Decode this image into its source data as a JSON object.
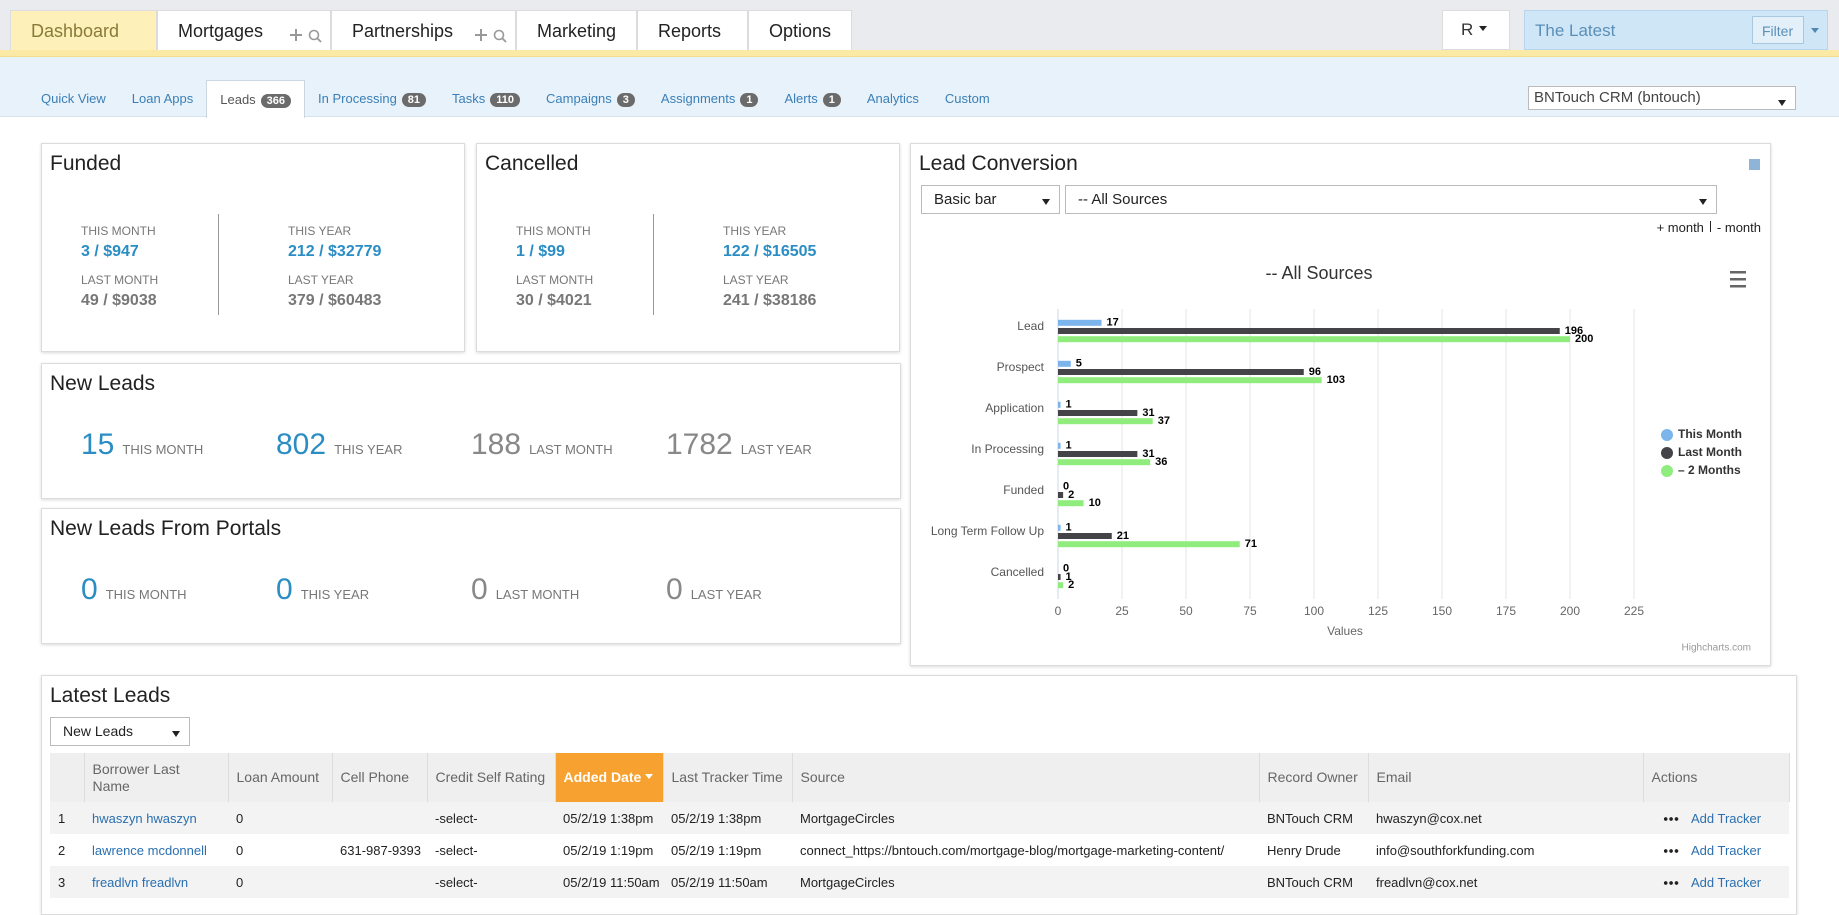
{
  "nav": {
    "tabs": [
      "Dashboard",
      "Mortgages",
      "Partnerships",
      "Marketing",
      "Reports",
      "Options"
    ],
    "user": "R",
    "search": "The Latest",
    "filter": "Filter"
  },
  "subnav": {
    "tabs": [
      {
        "label": "Quick View"
      },
      {
        "label": "Loan Apps"
      },
      {
        "label": "Leads",
        "count": 366
      },
      {
        "label": "In Processing",
        "count": 81
      },
      {
        "label": "Tasks",
        "count": 110
      },
      {
        "label": "Campaigns",
        "count": 3
      },
      {
        "label": "Assignments",
        "count": 1
      },
      {
        "label": "Alerts",
        "count": 1
      },
      {
        "label": "Analytics"
      },
      {
        "label": "Custom"
      }
    ],
    "crm": "BNTouch CRM (bntouch)"
  },
  "funded": {
    "title": "Funded",
    "stats": [
      {
        "label": "THIS MONTH",
        "value": "3 / $947"
      },
      {
        "label": "THIS YEAR",
        "value": "212 / $32779"
      },
      {
        "label": "LAST MONTH",
        "value": "49 / $9038"
      },
      {
        "label": "LAST YEAR",
        "value": "379 / $60483"
      }
    ]
  },
  "cancelled": {
    "title": "Cancelled",
    "stats": [
      {
        "label": "THIS MONTH",
        "value": "1 / $99"
      },
      {
        "label": "THIS YEAR",
        "value": "122 / $16505"
      },
      {
        "label": "LAST MONTH",
        "value": "30 / $4021"
      },
      {
        "label": "LAST YEAR",
        "value": "241 / $38186"
      }
    ]
  },
  "new_leads": {
    "title": "New Leads",
    "stats": [
      {
        "value": 15,
        "label": "THIS MONTH"
      },
      {
        "value": 802,
        "label": "THIS YEAR"
      },
      {
        "value": 188,
        "label": "LAST MONTH"
      },
      {
        "value": 1782,
        "label": "LAST YEAR"
      }
    ]
  },
  "portals": {
    "title": "New Leads From Portals",
    "stats": [
      {
        "value": 0,
        "label": "THIS MONTH"
      },
      {
        "value": 0,
        "label": "THIS YEAR"
      },
      {
        "value": 0,
        "label": "LAST MONTH"
      },
      {
        "value": 0,
        "label": "LAST YEAR"
      }
    ]
  },
  "lead_conversion": {
    "title": "Lead Conversion",
    "chart_select": "Basic bar",
    "source_select": "-- All Sources",
    "plus": "+ month",
    "minus": "- month",
    "credit": "Highcharts.com"
  },
  "chart_data": {
    "type": "bar",
    "orientation": "horizontal",
    "title": "-- All Sources",
    "x_label": "Values",
    "categories": [
      "Lead",
      "Prospect",
      "Application",
      "In Processing",
      "Funded",
      "Long Term Follow Up",
      "Cancelled"
    ],
    "series": [
      {
        "name": "This Month",
        "color": "#7cb5ec",
        "values": [
          17,
          5,
          1,
          1,
          0,
          1,
          0
        ]
      },
      {
        "name": "Last Month",
        "color": "#434348",
        "values": [
          196,
          96,
          31,
          31,
          2,
          21,
          1
        ]
      },
      {
        "name": "– 2 Months",
        "color": "#90ed7d",
        "values": [
          200,
          103,
          37,
          36,
          10,
          71,
          2
        ]
      }
    ],
    "xlim": [
      0,
      225
    ],
    "xticks": [
      0,
      25,
      50,
      75,
      100,
      125,
      150,
      175,
      200,
      225
    ],
    "grid": true,
    "legend": "right"
  },
  "latest": {
    "title": "Latest Leads",
    "filter": "New Leads",
    "columns": [
      null,
      "Borrower Last Name",
      "Loan Amount",
      "Cell Phone",
      "Credit Self Rating",
      "Added Date",
      "Last Tracker Time",
      "Source",
      "Record Owner",
      "Email",
      "Actions"
    ],
    "rows": [
      [
        1,
        "hwaszyn hwaszyn",
        0,
        null,
        "-select-",
        "05/2/19 1:38pm",
        "05/2/19 1:38pm",
        "MortgageCircles",
        "BNTouch CRM",
        "hwaszyn@cox.net",
        "Add Tracker"
      ],
      [
        2,
        "lawrence mcdonnell",
        0,
        "631-987-9393",
        "-select-",
        "05/2/19 1:19pm",
        "05/2/19 1:19pm",
        "connect_https://bntouch.com/mortgage-blog/mortgage-marketing-content/",
        "Henry Drude",
        "info@southforkfunding.com",
        "Add Tracker"
      ],
      [
        3,
        "freadlvn freadlvn",
        0,
        null,
        "-select-",
        "05/2/19 11:50am",
        "05/2/19 11:50am",
        "MortgageCircles",
        "BNTouch CRM",
        "freadlvn@cox.net",
        "Add Tracker"
      ]
    ]
  }
}
